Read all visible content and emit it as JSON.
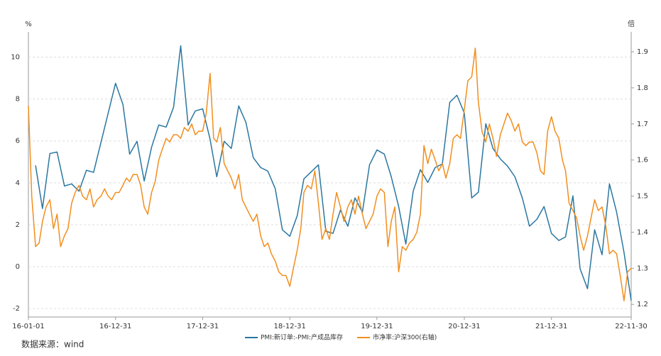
{
  "chart_data": {
    "type": "line",
    "y_label": "%",
    "y2_label": "倍",
    "source": "数据来源：wind",
    "xlim": [
      "16-01-01",
      "22-11-30"
    ],
    "xticks": [
      "16-01-01",
      "16-12-31",
      "17-12-31",
      "18-12-31",
      "19-12-31",
      "20-12-31",
      "21-12-31",
      "22-11-30"
    ],
    "ylim": [
      -2.4,
      11.2
    ],
    "yticks": [
      -2,
      0,
      2,
      4,
      6,
      8,
      10
    ],
    "y2lim": [
      1.165,
      1.955
    ],
    "y2ticks": [
      1.2,
      1.3,
      1.4,
      1.5,
      1.6,
      1.7,
      1.8,
      1.9
    ],
    "grid": true,
    "legend": "bottom",
    "series": [
      {
        "name": "PMI:新订单:-PMI:产成品库存",
        "color": "#2a77a0",
        "x": [
          "16-01-31",
          "16-02-29",
          "16-03-31",
          "16-04-30",
          "16-05-31",
          "16-06-30",
          "16-07-31",
          "16-08-31",
          "16-09-30",
          "16-12-31",
          "17-01-31",
          "17-02-28",
          "17-03-31",
          "17-04-30",
          "17-05-31",
          "17-06-30",
          "17-07-31",
          "17-08-31",
          "17-09-30",
          "17-10-31",
          "17-11-30",
          "17-12-31",
          "18-01-31",
          "18-02-28",
          "18-03-31",
          "18-04-30",
          "18-05-31",
          "18-06-30",
          "18-07-31",
          "18-08-31",
          "18-09-30",
          "18-10-31",
          "18-11-30",
          "18-12-31",
          "19-01-31",
          "19-02-28",
          "19-03-31",
          "19-04-30",
          "19-05-31",
          "19-06-30",
          "19-07-31",
          "19-08-31",
          "19-09-30",
          "19-10-31",
          "19-11-30",
          "19-12-31",
          "20-01-31",
          "20-02-29",
          "20-03-31",
          "20-04-30",
          "20-05-31",
          "20-06-30",
          "20-07-31",
          "20-08-31",
          "20-09-30",
          "20-10-31",
          "20-11-30",
          "20-12-31",
          "21-01-31",
          "21-02-28",
          "21-03-31",
          "21-04-30",
          "21-05-31",
          "21-06-30",
          "21-07-31",
          "21-08-31",
          "21-09-30",
          "21-10-31",
          "21-11-30",
          "21-12-31",
          "22-01-31",
          "22-02-28",
          "22-03-31",
          "22-04-30",
          "22-05-31",
          "22-06-30",
          "22-07-31",
          "22-08-31",
          "22-09-30",
          "22-10-31",
          "22-11-30"
        ],
        "values": [
          4.83,
          2.77,
          5.4,
          5.47,
          3.85,
          3.95,
          3.6,
          4.6,
          4.5,
          8.75,
          7.74,
          5.37,
          5.98,
          4.09,
          5.7,
          6.76,
          6.66,
          7.6,
          10.54,
          6.76,
          7.43,
          7.53,
          6.08,
          4.29,
          5.98,
          5.64,
          7.67,
          6.89,
          5.2,
          4.73,
          4.56,
          3.72,
          1.76,
          1.45,
          2.43,
          4.19,
          4.53,
          4.86,
          1.69,
          1.59,
          2.7,
          1.93,
          3.28,
          2.6,
          4.86,
          5.57,
          5.37,
          4.29,
          2.87,
          1.08,
          3.61,
          4.63,
          4.02,
          4.73,
          4.9,
          7.84,
          8.18,
          7.33,
          3.28,
          3.55,
          6.82,
          5.64,
          5.14,
          4.8,
          4.29,
          3.28,
          1.93,
          2.26,
          2.87,
          1.59,
          1.25,
          1.42,
          3.38,
          -0.1,
          -1.05,
          1.76,
          0.57,
          3.95,
          2.6,
          0.68,
          -1.62
        ]
      },
      {
        "name": "市净率:沪深300(右轴)",
        "color": "#f28e1e",
        "axis": "y2",
        "x": [
          "16-01-01",
          "16-01-15",
          "16-01-31",
          "16-02-15",
          "16-02-29",
          "16-03-15",
          "16-03-31",
          "16-04-15",
          "16-04-30",
          "16-05-15",
          "16-05-31",
          "16-06-15",
          "16-06-30",
          "16-07-15",
          "16-07-31",
          "16-08-15",
          "16-08-31",
          "16-09-15",
          "16-09-30",
          "16-10-15",
          "16-10-31",
          "16-11-15",
          "16-11-30",
          "16-12-15",
          "16-12-31",
          "17-01-15",
          "17-01-31",
          "17-02-15",
          "17-02-28",
          "17-03-15",
          "17-03-31",
          "17-04-15",
          "17-04-30",
          "17-05-15",
          "17-05-31",
          "17-06-15",
          "17-06-30",
          "17-07-15",
          "17-07-31",
          "17-08-15",
          "17-08-31",
          "17-09-15",
          "17-09-30",
          "17-10-15",
          "17-10-31",
          "17-11-15",
          "17-11-30",
          "17-12-15",
          "17-12-31",
          "18-01-15",
          "18-01-31",
          "18-02-15",
          "18-02-28",
          "18-03-15",
          "18-03-31",
          "18-04-15",
          "18-04-30",
          "18-05-15",
          "18-05-31",
          "18-06-15",
          "18-06-30",
          "18-07-15",
          "18-07-31",
          "18-08-15",
          "18-08-31",
          "18-09-15",
          "18-09-30",
          "18-10-15",
          "18-10-31",
          "18-11-15",
          "18-11-30",
          "18-12-15",
          "18-12-31",
          "19-01-15",
          "19-01-31",
          "19-02-15",
          "19-02-28",
          "19-03-15",
          "19-03-31",
          "19-04-15",
          "19-04-30",
          "19-05-15",
          "19-05-31",
          "19-06-15",
          "19-06-30",
          "19-07-15",
          "19-07-31",
          "19-08-15",
          "19-08-31",
          "19-09-15",
          "19-09-30",
          "19-10-15",
          "19-10-31",
          "19-11-15",
          "19-11-30",
          "19-12-15",
          "19-12-31",
          "20-01-15",
          "20-01-31",
          "20-02-15",
          "20-02-29",
          "20-03-15",
          "20-03-31",
          "20-04-15",
          "20-04-30",
          "20-05-15",
          "20-05-31",
          "20-06-15",
          "20-06-30",
          "20-07-15",
          "20-07-31",
          "20-08-15",
          "20-08-31",
          "20-09-15",
          "20-09-30",
          "20-10-15",
          "20-10-31",
          "20-11-15",
          "20-11-30",
          "20-12-15",
          "20-12-31",
          "21-01-15",
          "21-01-31",
          "21-02-15",
          "21-02-28",
          "21-03-15",
          "21-03-31",
          "21-04-15",
          "21-04-30",
          "21-05-15",
          "21-05-31",
          "21-06-15",
          "21-06-30",
          "21-07-15",
          "21-07-31",
          "21-08-15",
          "21-08-31",
          "21-09-15",
          "21-09-30",
          "21-10-15",
          "21-10-31",
          "21-11-15",
          "21-11-30",
          "21-12-15",
          "21-12-31",
          "22-01-15",
          "22-01-31",
          "22-02-15",
          "22-02-28",
          "22-03-15",
          "22-03-31",
          "22-04-15",
          "22-04-30",
          "22-05-15",
          "22-05-31",
          "22-06-15",
          "22-06-30",
          "22-07-15",
          "22-07-31",
          "22-08-15",
          "22-08-31",
          "22-09-15",
          "22-09-30",
          "22-10-15",
          "22-10-31",
          "22-11-15",
          "22-11-30"
        ],
        "values": [
          1.75,
          1.5,
          1.36,
          1.37,
          1.43,
          1.47,
          1.49,
          1.41,
          1.45,
          1.36,
          1.39,
          1.41,
          1.48,
          1.51,
          1.53,
          1.5,
          1.49,
          1.52,
          1.47,
          1.49,
          1.5,
          1.52,
          1.5,
          1.49,
          1.51,
          1.51,
          1.53,
          1.55,
          1.54,
          1.56,
          1.56,
          1.53,
          1.47,
          1.45,
          1.51,
          1.54,
          1.6,
          1.63,
          1.66,
          1.65,
          1.67,
          1.67,
          1.66,
          1.69,
          1.68,
          1.7,
          1.67,
          1.68,
          1.68,
          1.73,
          1.84,
          1.66,
          1.65,
          1.69,
          1.59,
          1.57,
          1.55,
          1.52,
          1.56,
          1.49,
          1.47,
          1.45,
          1.43,
          1.45,
          1.39,
          1.36,
          1.37,
          1.34,
          1.32,
          1.29,
          1.28,
          1.28,
          1.25,
          1.3,
          1.35,
          1.41,
          1.51,
          1.53,
          1.52,
          1.57,
          1.48,
          1.38,
          1.41,
          1.38,
          1.45,
          1.51,
          1.47,
          1.43,
          1.47,
          1.49,
          1.45,
          1.5,
          1.45,
          1.41,
          1.43,
          1.45,
          1.5,
          1.52,
          1.51,
          1.36,
          1.43,
          1.47,
          1.29,
          1.36,
          1.35,
          1.37,
          1.38,
          1.4,
          1.45,
          1.64,
          1.59,
          1.63,
          1.6,
          1.57,
          1.59,
          1.55,
          1.59,
          1.66,
          1.67,
          1.66,
          1.74,
          1.82,
          1.83,
          1.91,
          1.76,
          1.68,
          1.65,
          1.7,
          1.66,
          1.61,
          1.67,
          1.7,
          1.73,
          1.71,
          1.68,
          1.7,
          1.65,
          1.64,
          1.65,
          1.65,
          1.62,
          1.57,
          1.56,
          1.68,
          1.72,
          1.68,
          1.66,
          1.6,
          1.57,
          1.48,
          1.46,
          1.44,
          1.39,
          1.35,
          1.39,
          1.44,
          1.49,
          1.46,
          1.47,
          1.42,
          1.34,
          1.35,
          1.34,
          1.28,
          1.21,
          1.29,
          1.3
        ]
      }
    ]
  }
}
